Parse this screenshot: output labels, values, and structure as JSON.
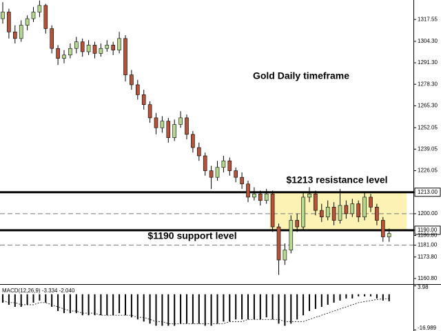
{
  "chart_data": [
    {
      "type": "candlestick",
      "annotations": [
        "Gold Daily timeframe",
        "$1213 resistance level",
        "$1190 support level"
      ],
      "up_color": "#b6d98f",
      "down_color": "#b5533a",
      "zone_color": "#fbf2b4",
      "ylim": [
        1157.4,
        1329.3
      ],
      "yticks": [
        {
          "value": 1317.55,
          "label": "1317.55"
        },
        {
          "value": 1304.3,
          "label": "1304.30"
        },
        {
          "value": 1291.3,
          "label": "1291.30"
        },
        {
          "value": 1278.3,
          "label": "1278.30"
        },
        {
          "value": 1265.3,
          "label": "1265.30"
        },
        {
          "value": 1252.05,
          "label": "1252.05"
        },
        {
          "value": 1239.05,
          "label": "1239.05"
        },
        {
          "value": 1226.05,
          "label": "1226.05"
        },
        {
          "value": 1213,
          "label": "1213.00"
        },
        {
          "value": 1200,
          "label": "1200.00"
        },
        {
          "value": 1190,
          "label": "1190.00"
        },
        {
          "value": 1186.8,
          "label": "1186.80"
        },
        {
          "value": 1181,
          "label": "1181.00"
        },
        {
          "value": 1173.8,
          "label": "1173.80"
        },
        {
          "value": 1160.8,
          "label": "1160.80"
        }
      ],
      "levels": [
        {
          "value": 1213,
          "style": "solid"
        },
        {
          "value": 1200,
          "style": "dashed"
        },
        {
          "value": 1190,
          "style": "solid"
        },
        {
          "value": 1181,
          "style": "dashed"
        }
      ],
      "ohlc": [
        [
          1318,
          1328,
          1315,
          1322
        ],
        [
          1322,
          1324,
          1306,
          1310
        ],
        [
          1310,
          1314,
          1303,
          1306
        ],
        [
          1306,
          1317,
          1304,
          1314
        ],
        [
          1314,
          1320,
          1311,
          1318
        ],
        [
          1318,
          1325,
          1316,
          1322
        ],
        [
          1322,
          1329,
          1319,
          1326
        ],
        [
          1326,
          1327,
          1309,
          1312
        ],
        [
          1312,
          1314,
          1297,
          1300
        ],
        [
          1300,
          1302,
          1290,
          1294
        ],
        [
          1294,
          1299,
          1291,
          1296
        ],
        [
          1296,
          1303,
          1294,
          1300
        ],
        [
          1300,
          1307,
          1297,
          1304
        ],
        [
          1304,
          1306,
          1295,
          1298
        ],
        [
          1298,
          1305,
          1296,
          1302
        ],
        [
          1302,
          1304,
          1294,
          1297
        ],
        [
          1297,
          1303,
          1295,
          1300
        ],
        [
          1300,
          1305,
          1298,
          1302
        ],
        [
          1302,
          1304,
          1296,
          1299
        ],
        [
          1299,
          1310,
          1297,
          1306
        ],
        [
          1306,
          1308,
          1280,
          1284
        ],
        [
          1284,
          1287,
          1275,
          1278
        ],
        [
          1278,
          1281,
          1269,
          1272
        ],
        [
          1272,
          1275,
          1263,
          1266
        ],
        [
          1266,
          1268,
          1255,
          1258
        ],
        [
          1258,
          1261,
          1248,
          1252
        ],
        [
          1252,
          1259,
          1249,
          1256
        ],
        [
          1256,
          1258,
          1243,
          1246
        ],
        [
          1246,
          1257,
          1244,
          1254
        ],
        [
          1254,
          1262,
          1252,
          1258
        ],
        [
          1258,
          1260,
          1245,
          1248
        ],
        [
          1248,
          1250,
          1237,
          1240
        ],
        [
          1240,
          1243,
          1232,
          1235
        ],
        [
          1235,
          1237,
          1223,
          1226
        ],
        [
          1226,
          1229,
          1215,
          1222
        ],
        [
          1222,
          1232,
          1220,
          1228
        ],
        [
          1228,
          1235,
          1225,
          1232
        ],
        [
          1232,
          1234,
          1223,
          1226
        ],
        [
          1226,
          1228,
          1219,
          1222
        ],
        [
          1222,
          1225,
          1215,
          1218
        ],
        [
          1218,
          1220,
          1207,
          1210
        ],
        [
          1210,
          1216,
          1208,
          1212
        ],
        [
          1212,
          1214,
          1205,
          1208
        ],
        [
          1208,
          1215,
          1206,
          1212
        ],
        [
          1212,
          1214,
          1189,
          1192
        ],
        [
          1192,
          1194,
          1163,
          1172
        ],
        [
          1172,
          1182,
          1169,
          1178
        ],
        [
          1178,
          1199,
          1176,
          1196
        ],
        [
          1196,
          1200,
          1189,
          1192
        ],
        [
          1192,
          1213,
          1190,
          1210
        ],
        [
          1210,
          1216,
          1207,
          1212
        ],
        [
          1212,
          1214,
          1199,
          1202
        ],
        [
          1202,
          1206,
          1195,
          1198
        ],
        [
          1198,
          1208,
          1196,
          1204
        ],
        [
          1204,
          1207,
          1193,
          1196
        ],
        [
          1196,
          1215,
          1194,
          1205
        ],
        [
          1205,
          1208,
          1197,
          1200
        ],
        [
          1200,
          1209,
          1198,
          1206
        ],
        [
          1206,
          1208,
          1195,
          1198
        ],
        [
          1198,
          1213,
          1196,
          1210
        ],
        [
          1210,
          1212,
          1201,
          1204
        ],
        [
          1204,
          1206,
          1193,
          1196
        ],
        [
          1196,
          1198,
          1183,
          1186
        ],
        [
          1186,
          1191,
          1183,
          1188
        ]
      ]
    },
    {
      "type": "bar",
      "title": "MACD(12,26,9) -3.334 -2.040",
      "ylim": [
        -17.5,
        4.5
      ],
      "yticks": [
        3.98,
        -16.989
      ],
      "series": [
        {
          "type": "bar",
          "color": "#000000",
          "values": [
            -4,
            -5,
            -6,
            -6,
            -5,
            -4,
            -3,
            -4,
            -6,
            -8,
            -9,
            -9,
            -9,
            -10,
            -10,
            -10,
            -10,
            -10,
            -10,
            -9,
            -10,
            -11,
            -12,
            -13,
            -14,
            -15,
            -15,
            -15,
            -15,
            -14,
            -14,
            -14,
            -14,
            -15,
            -15,
            -14,
            -13,
            -13,
            -12,
            -12,
            -12,
            -12,
            -12,
            -11,
            -12,
            -14,
            -15,
            -14,
            -12,
            -10,
            -8,
            -7,
            -6,
            -5,
            -4,
            -3,
            -2,
            -2,
            -1,
            -1,
            -1,
            -2,
            -3,
            -3.334
          ]
        },
        {
          "type": "line",
          "color": "#000000",
          "values": [
            -3,
            -4,
            -4,
            -5,
            -5,
            -5,
            -4,
            -4,
            -5,
            -6,
            -7,
            -8,
            -8,
            -9,
            -9,
            -9,
            -10,
            -10,
            -10,
            -10,
            -10,
            -10,
            -11,
            -11,
            -12,
            -13,
            -13,
            -14,
            -14,
            -14,
            -14,
            -14,
            -14,
            -14,
            -14,
            -14,
            -14,
            -13,
            -13,
            -13,
            -12,
            -12,
            -12,
            -12,
            -12,
            -12,
            -13,
            -13,
            -13,
            -13,
            -12,
            -11,
            -10,
            -9,
            -8,
            -7,
            -6,
            -5,
            -4,
            -3.5,
            -3,
            -2.5,
            -2.2,
            -2.04
          ]
        }
      ]
    }
  ]
}
